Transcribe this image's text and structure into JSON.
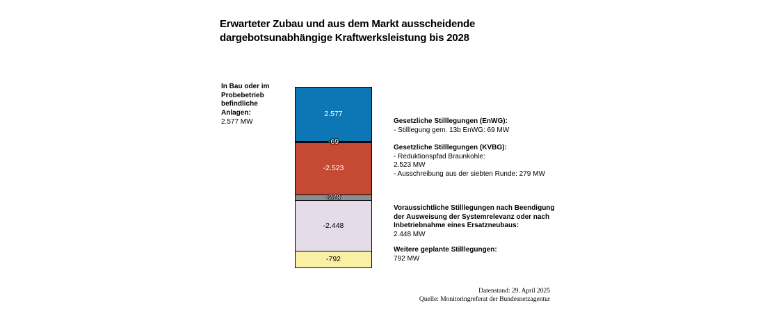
{
  "title": "Erwarteter Zubau und aus dem Markt ausscheidende\ndargebotsunabhängige Kraftwerksleistung bis 2028",
  "left_label": {
    "heading": "In Bau oder im\nProbebetrieb\nbefindliche\nAnlagen:",
    "value": "2.577 MW"
  },
  "chart_data": {
    "type": "bar",
    "subtype": "single-stacked-column",
    "title": "Erwarteter Zubau und aus dem Markt ausscheidende dargebotsunabhängige Kraftwerksleistung bis 2028",
    "unit": "MW",
    "axes_visible": false,
    "grid": false,
    "segments": [
      {
        "name": "In Bau oder im Probebetrieb befindliche Anlagen",
        "value": 2577,
        "label": "2.577",
        "color": "#0d76b4",
        "text_color": "#ffffff",
        "halo": false
      },
      {
        "name": "Gesetzliche Stilllegungen (EnWG) - Stilllegung gem. 13b EnWG",
        "value": -69,
        "label": "-69",
        "color": "#131722",
        "text_color": "#ffffff",
        "halo": true
      },
      {
        "name": "Gesetzliche Stilllegungen (KVBG) - Reduktionspfad Braunkohle",
        "value": -2523,
        "label": "-2.523",
        "color": "#c64a33",
        "text_color": "#ffffff",
        "halo": false
      },
      {
        "name": "Gesetzliche Stilllegungen (KVBG) - Ausschreibung aus der siebten Runde",
        "value": -279,
        "label": "-279",
        "color": "#8b8f93",
        "text_color": "#ffffff",
        "halo": true
      },
      {
        "name": "Voraussichtliche Stilllegungen nach Beendigung der Ausweisung der Systemrelevanz oder nach Inbetriebnahme eines Ersatzneubaus",
        "value": -2448,
        "label": "-2.448",
        "color": "#e4dde9",
        "text_color": "#000000",
        "halo": false
      },
      {
        "name": "Weitere geplante Stilllegungen",
        "value": -792,
        "label": "-792",
        "color": "#f9f0a3",
        "text_color": "#000000",
        "halo": false
      }
    ]
  },
  "annotations": [
    {
      "heading": "Gesetzliche Stilllegungen (EnWG):",
      "body": "- Stilllegung gem. 13b EnWG: 69 MW"
    },
    {
      "heading": "Gesetzliche Stilllegungen (KVBG):",
      "body": "- Reduktionspfad Braunkohle:\n2.523 MW\n- Ausschreibung aus der siebten Runde: 279 MW"
    },
    {
      "heading": "Voraussichtliche Stilllegungen nach Beendigung\nder Ausweisung der Systemrelevanz oder nach\nInbetriebnahme eines Ersatzneubaus:",
      "body": "2.448 MW"
    },
    {
      "heading": "Weitere geplante Stilllegungen:",
      "body": "792 MW"
    }
  ],
  "footer": {
    "line1": "Datenstand: 29. April 2025",
    "line2": "Quelle: Monitoringreferat der Bundesnetzagentur"
  }
}
